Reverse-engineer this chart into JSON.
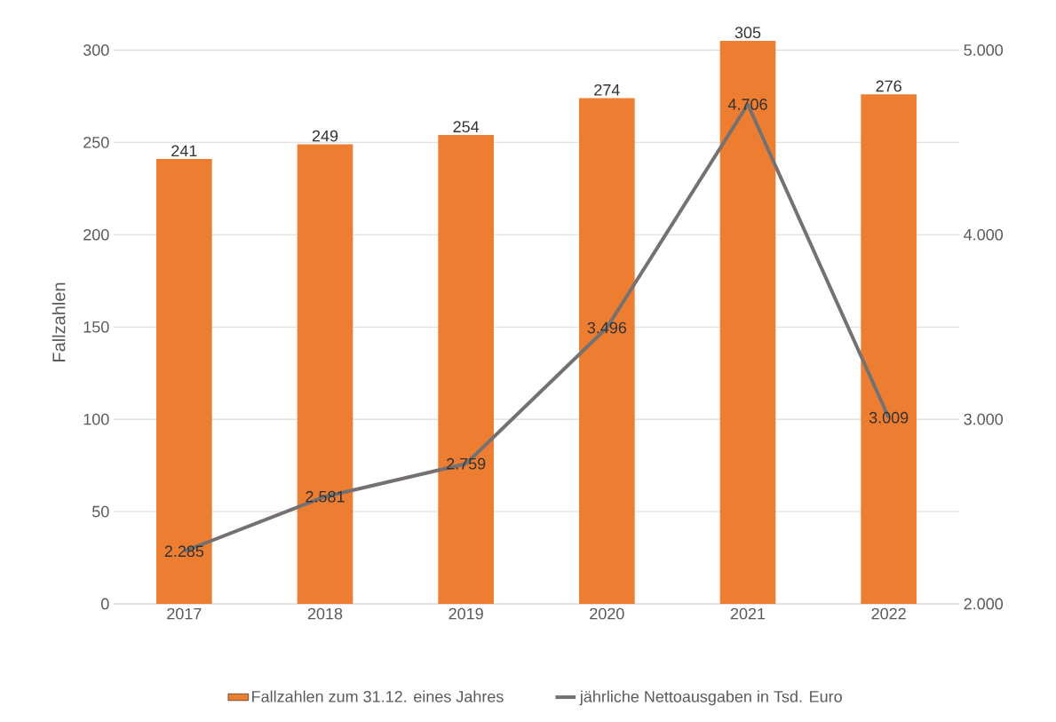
{
  "chart_data": {
    "type": "bar",
    "ylabel": "Fallzahlen",
    "categories": [
      "2017",
      "2018",
      "2019",
      "2020",
      "2021",
      "2022"
    ],
    "series": [
      {
        "name": "Fallzahlen zum 31.12. eines Jahres",
        "color": "#ed7d31",
        "values": [
          241,
          249,
          254,
          274,
          305,
          276
        ],
        "value_labels": [
          "241",
          "249",
          "254",
          "274",
          "305",
          "276"
        ]
      },
      {
        "name": "jährliche Nettoausgaben in Tsd. Euro",
        "type": "line",
        "axis": "y2",
        "color": "#767171",
        "values": [
          2285,
          2581,
          2759,
          3496,
          4706,
          3009
        ],
        "value_labels": [
          "2.285",
          "2.581",
          "2.759",
          "3.496",
          "4.706",
          "3.009"
        ]
      }
    ],
    "ylim": [
      0,
      305
    ],
    "yticks": [
      0,
      50,
      100,
      150,
      200,
      250,
      300
    ],
    "y2lim": [
      2000,
      5050
    ],
    "y2ticks": [
      {
        "value": 2000,
        "label": "2.000"
      },
      {
        "value": 3000,
        "label": "3.000"
      },
      {
        "value": 4000,
        "label": "4.000"
      },
      {
        "value": 5000,
        "label": "5.000"
      }
    ],
    "grid": "y",
    "legend": "bottom",
    "marker": "none",
    "line_style": "solid"
  }
}
